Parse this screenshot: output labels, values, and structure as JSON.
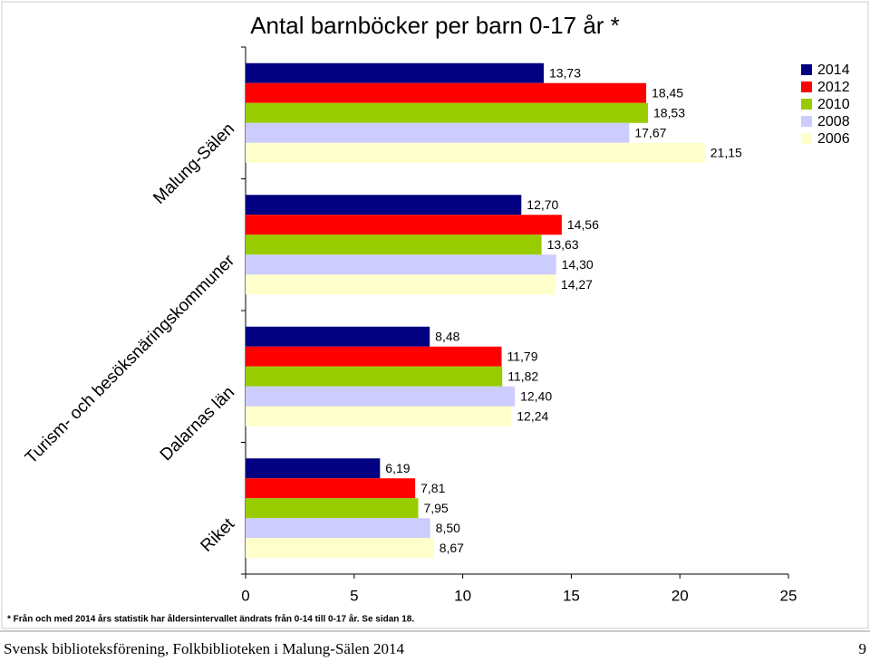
{
  "chart_data": {
    "type": "hbar",
    "title": "Antal barnböcker per barn 0-17 år *",
    "categories": [
      "Malung-Sälen",
      "Turism- och besöksnäringskommuner",
      "Dalarnas län",
      "Riket"
    ],
    "series": [
      {
        "name": "2014",
        "color": "#000080",
        "values": [
          13.73,
          12.7,
          8.48,
          6.19
        ],
        "value_labels": [
          "13,73",
          "12,70",
          "8,48",
          "6,19"
        ]
      },
      {
        "name": "2012",
        "color": "#ff0000",
        "values": [
          18.45,
          14.56,
          11.79,
          7.81
        ],
        "value_labels": [
          "18,45",
          "14,56",
          "11,79",
          "7,81"
        ]
      },
      {
        "name": "2010",
        "color": "#99cc00",
        "values": [
          18.53,
          13.63,
          11.82,
          7.95
        ],
        "value_labels": [
          "18,53",
          "13,63",
          "11,82",
          "7,95"
        ]
      },
      {
        "name": "2008",
        "color": "#ccccff",
        "values": [
          17.67,
          14.3,
          12.4,
          8.5
        ],
        "value_labels": [
          "17,67",
          "14,30",
          "12,40",
          "8,50"
        ]
      },
      {
        "name": "2006",
        "color": "#ffffcc",
        "values": [
          21.15,
          14.27,
          12.24,
          8.67
        ],
        "value_labels": [
          "21,15",
          "14,27",
          "12,24",
          "8,67"
        ]
      }
    ],
    "xlim": [
      0,
      25
    ],
    "xticks": [
      0,
      5,
      10,
      15,
      20,
      25
    ],
    "legend": "right",
    "footnote": "* Från och med 2014 års statistik har åldersintervallet ändrats från 0-14 till 0-17 år. Se sidan 18."
  },
  "footer": {
    "text": "Svensk biblioteksförening, Folkbiblioteken i Malung-Sälen 2014",
    "page": "9"
  }
}
